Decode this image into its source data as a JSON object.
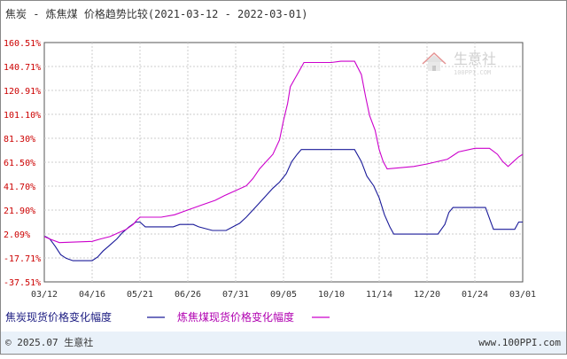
{
  "title": {
    "text": "焦炭 - 炼焦煤 价格趋势比较(2021-03-12 - 2022-03-01)"
  },
  "watermark": {
    "name": "生意社",
    "url": "100PPI.COM"
  },
  "legend": [
    {
      "label": "焦炭现货价格变化幅度",
      "color": "#1a1a99"
    },
    {
      "label": "炼焦煤现货价格变化幅度",
      "color": "#cc00cc"
    }
  ],
  "footer": {
    "left": "© 2025.07 生意社",
    "right": "www.100PPI.com"
  },
  "colors": {
    "border": "#888888",
    "grid": "#cccccc",
    "footer_bg": "#e9f1f9"
  },
  "chart_data": {
    "type": "line",
    "title": "焦炭 - 炼焦煤 价格趋势比较(2021-03-12 - 2022-03-01)",
    "xlabel": "",
    "ylabel": "",
    "x_ticks": [
      "03/12",
      "04/16",
      "05/21",
      "06/26",
      "07/31",
      "09/05",
      "10/10",
      "11/14",
      "12/20",
      "01/24",
      "03/01"
    ],
    "y_ticks": [
      "160.51%",
      "140.71%",
      "120.91%",
      "101.10%",
      "81.30%",
      "61.50%",
      "41.70%",
      "21.90%",
      "2.09%",
      "-17.71%",
      "-37.51%"
    ],
    "ylim": [
      -37.51,
      160.51
    ],
    "grid": true,
    "legend_position": "bottom",
    "series": [
      {
        "name": "焦炭现货价格变化幅度",
        "color": "#1a1a99",
        "points": [
          [
            "03/12",
            0
          ],
          [
            "03/13",
            0
          ],
          [
            "03/16",
            -2
          ],
          [
            "03/20",
            -8
          ],
          [
            "03/24",
            -15
          ],
          [
            "03/28",
            -18
          ],
          [
            "04/02",
            -20
          ],
          [
            "04/16",
            -20
          ],
          [
            "04/20",
            -17
          ],
          [
            "04/24",
            -12
          ],
          [
            "04/29",
            -7
          ],
          [
            "05/04",
            -2
          ],
          [
            "05/08",
            3
          ],
          [
            "05/13",
            8
          ],
          [
            "05/18",
            12
          ],
          [
            "05/21",
            12
          ],
          [
            "05/25",
            8
          ],
          [
            "06/15",
            8
          ],
          [
            "06/20",
            10
          ],
          [
            "06/30",
            10
          ],
          [
            "07/04",
            8
          ],
          [
            "07/14",
            5
          ],
          [
            "07/24",
            5
          ],
          [
            "07/29",
            8
          ],
          [
            "08/03",
            11
          ],
          [
            "08/08",
            16
          ],
          [
            "08/13",
            22
          ],
          [
            "08/18",
            28
          ],
          [
            "08/23",
            34
          ],
          [
            "08/28",
            40
          ],
          [
            "09/02",
            45
          ],
          [
            "09/07",
            52
          ],
          [
            "09/11",
            62
          ],
          [
            "09/15",
            68
          ],
          [
            "09/18",
            72
          ],
          [
            "10/10",
            72
          ],
          [
            "10/27",
            72
          ],
          [
            "11/01",
            62
          ],
          [
            "11/05",
            50
          ],
          [
            "11/10",
            42
          ],
          [
            "11/14",
            32
          ],
          [
            "11/18",
            18
          ],
          [
            "11/22",
            8
          ],
          [
            "11/25",
            2
          ],
          [
            "12/20",
            2
          ],
          [
            "12/28",
            2
          ],
          [
            "01/02",
            10
          ],
          [
            "01/05",
            20
          ],
          [
            "01/08",
            24
          ],
          [
            "01/24",
            24
          ],
          [
            "02/01",
            24
          ],
          [
            "02/04",
            15
          ],
          [
            "02/07",
            6
          ],
          [
            "02/14",
            6
          ],
          [
            "02/23",
            6
          ],
          [
            "02/26",
            12
          ],
          [
            "03/01",
            12
          ]
        ]
      },
      {
        "name": "炼焦煤现货价格变化幅度",
        "color": "#cc00cc",
        "points": [
          [
            "03/12",
            0
          ],
          [
            "03/16",
            -2
          ],
          [
            "03/23",
            -5
          ],
          [
            "04/16",
            -4
          ],
          [
            "04/22",
            -2
          ],
          [
            "04/29",
            0
          ],
          [
            "05/05",
            3
          ],
          [
            "05/11",
            6
          ],
          [
            "05/16",
            10
          ],
          [
            "05/19",
            14
          ],
          [
            "05/21",
            16
          ],
          [
            "06/06",
            16
          ],
          [
            "06/16",
            18
          ],
          [
            "06/26",
            22
          ],
          [
            "07/06",
            26
          ],
          [
            "07/16",
            30
          ],
          [
            "07/23",
            34
          ],
          [
            "07/31",
            38
          ],
          [
            "08/08",
            42
          ],
          [
            "08/13",
            48
          ],
          [
            "08/18",
            56
          ],
          [
            "08/23",
            62
          ],
          [
            "08/28",
            68
          ],
          [
            "09/02",
            80
          ],
          [
            "09/05",
            96
          ],
          [
            "09/08",
            110
          ],
          [
            "09/10",
            124
          ],
          [
            "09/13",
            130
          ],
          [
            "09/16",
            136
          ],
          [
            "09/20",
            144
          ],
          [
            "10/10",
            144
          ],
          [
            "10/17",
            145
          ],
          [
            "10/27",
            145
          ],
          [
            "11/01",
            134
          ],
          [
            "11/04",
            116
          ],
          [
            "11/07",
            100
          ],
          [
            "11/11",
            88
          ],
          [
            "11/14",
            72
          ],
          [
            "11/17",
            62
          ],
          [
            "11/20",
            56
          ],
          [
            "12/10",
            58
          ],
          [
            "12/20",
            60
          ],
          [
            "01/04",
            64
          ],
          [
            "01/12",
            70
          ],
          [
            "01/24",
            73
          ],
          [
            "02/04",
            73
          ],
          [
            "02/10",
            68
          ],
          [
            "02/14",
            62
          ],
          [
            "02/18",
            58
          ],
          [
            "02/22",
            62
          ],
          [
            "02/26",
            66
          ],
          [
            "03/01",
            68
          ]
        ]
      }
    ]
  }
}
